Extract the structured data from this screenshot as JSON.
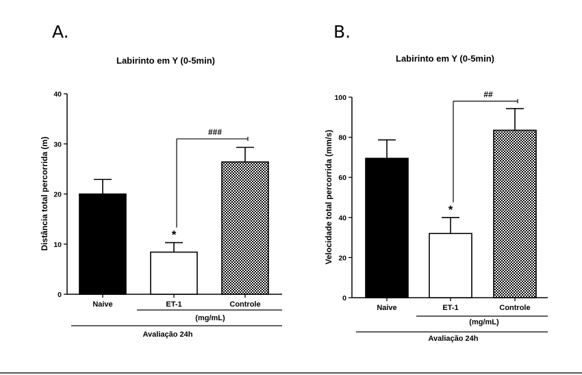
{
  "chart_data": [
    {
      "panel": "A.",
      "type": "bar",
      "title": "Labirinto em Y (0-5min)",
      "ylabel": "Distância total percorrida (m)",
      "ylim": [
        0,
        40
      ],
      "yticks": [
        0,
        10,
        20,
        30,
        40
      ],
      "categories": [
        "Naive",
        "ET-1",
        "Controle"
      ],
      "values": [
        20.0,
        8.4,
        26.4
      ],
      "errors": [
        2.9,
        1.9,
        2.9
      ],
      "fills": [
        "black",
        "white",
        "checker"
      ],
      "group_label": "(mg/mL)",
      "group_covers": [
        "ET-1",
        "Controle"
      ],
      "footer_label": "Avaliação 24h",
      "annotations": [
        {
          "text": "*",
          "category": "ET-1"
        },
        {
          "text": "###",
          "from": "ET-1",
          "to": "Controle",
          "level": 31
        }
      ]
    },
    {
      "panel": "B.",
      "type": "bar",
      "title": "Labirinto em Y (0-5min)",
      "ylabel": "Velocidade total percorrida  (mm/s)",
      "ylim": [
        0,
        100
      ],
      "yticks": [
        0,
        20,
        40,
        60,
        80,
        100
      ],
      "categories": [
        "Naive",
        "ET-1",
        "Controle"
      ],
      "values": [
        69.5,
        32.0,
        83.5
      ],
      "errors": [
        9.2,
        8.0,
        10.8
      ],
      "fills": [
        "black",
        "white",
        "checker"
      ],
      "group_label": "(mg/mL)",
      "group_covers": [
        "ET-1",
        "Controle"
      ],
      "footer_label": "Avaliação 24h",
      "annotations": [
        {
          "text": "*",
          "category": "ET-1"
        },
        {
          "text": "##",
          "from": "ET-1",
          "to": "Controle",
          "level": 98
        }
      ]
    }
  ]
}
